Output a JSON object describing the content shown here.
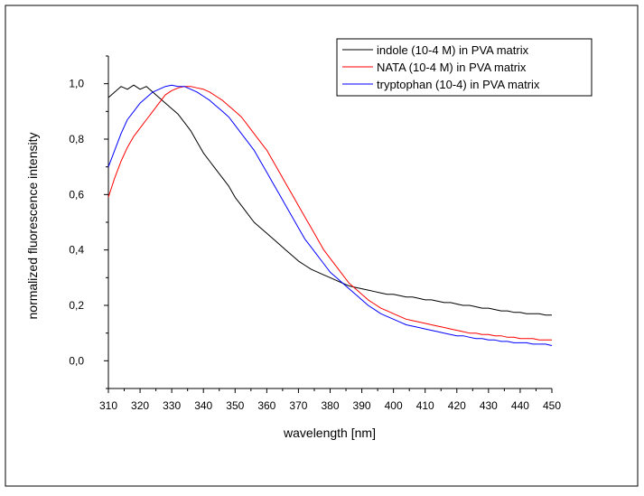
{
  "chart_data": {
    "type": "line",
    "title": "",
    "xlabel": "wavelength [nm]",
    "ylabel": "normalized fluorescence intensity",
    "xlim": [
      310,
      450
    ],
    "ylim": [
      -0.1,
      1.1
    ],
    "xticks": [
      310,
      320,
      330,
      340,
      350,
      360,
      370,
      380,
      390,
      400,
      410,
      420,
      430,
      440,
      450
    ],
    "yticks": [
      0.0,
      0.2,
      0.4,
      0.6,
      0.8,
      1.0
    ],
    "ytick_labels": [
      "0,0",
      "0,2",
      "0,4",
      "0,6",
      "0,8",
      "1,0"
    ],
    "grid": false,
    "legend_position": "top-right",
    "series": [
      {
        "name": "indole (10-4 M) in PVA matrix",
        "color": "#000000",
        "x": [
          310,
          312,
          314,
          316,
          318,
          320,
          322,
          324,
          326,
          328,
          330,
          332,
          334,
          336,
          338,
          340,
          342,
          344,
          346,
          348,
          350,
          352,
          354,
          356,
          358,
          360,
          362,
          364,
          366,
          368,
          370,
          372,
          374,
          376,
          378,
          380,
          382,
          384,
          386,
          388,
          390,
          392,
          394,
          396,
          398,
          400,
          402,
          404,
          406,
          408,
          410,
          412,
          414,
          416,
          418,
          420,
          422,
          424,
          426,
          428,
          430,
          432,
          434,
          436,
          438,
          440,
          442,
          444,
          446,
          448,
          450
        ],
        "y": [
          0.95,
          0.97,
          0.99,
          0.98,
          0.995,
          0.98,
          0.99,
          0.97,
          0.95,
          0.93,
          0.91,
          0.89,
          0.86,
          0.83,
          0.79,
          0.75,
          0.72,
          0.69,
          0.66,
          0.63,
          0.59,
          0.56,
          0.53,
          0.5,
          0.48,
          0.46,
          0.44,
          0.42,
          0.4,
          0.38,
          0.36,
          0.345,
          0.33,
          0.32,
          0.31,
          0.3,
          0.29,
          0.28,
          0.27,
          0.265,
          0.26,
          0.255,
          0.25,
          0.245,
          0.24,
          0.24,
          0.235,
          0.23,
          0.23,
          0.225,
          0.22,
          0.22,
          0.215,
          0.21,
          0.21,
          0.205,
          0.2,
          0.2,
          0.195,
          0.19,
          0.19,
          0.185,
          0.18,
          0.18,
          0.175,
          0.175,
          0.17,
          0.17,
          0.17,
          0.165,
          0.165
        ]
      },
      {
        "name": "NATA (10-4 M) in PVA matrix",
        "color": "#ff0000",
        "x": [
          310,
          312,
          314,
          316,
          318,
          320,
          322,
          324,
          326,
          328,
          330,
          332,
          334,
          336,
          338,
          340,
          342,
          344,
          346,
          348,
          350,
          352,
          354,
          356,
          358,
          360,
          362,
          364,
          366,
          368,
          370,
          372,
          374,
          376,
          378,
          380,
          382,
          384,
          386,
          388,
          390,
          392,
          394,
          396,
          398,
          400,
          402,
          404,
          406,
          408,
          410,
          412,
          414,
          416,
          418,
          420,
          422,
          424,
          426,
          428,
          430,
          432,
          434,
          436,
          438,
          440,
          442,
          444,
          446,
          448,
          450
        ],
        "y": [
          0.59,
          0.66,
          0.72,
          0.77,
          0.81,
          0.84,
          0.87,
          0.9,
          0.93,
          0.96,
          0.975,
          0.985,
          0.99,
          0.99,
          0.985,
          0.98,
          0.97,
          0.955,
          0.94,
          0.92,
          0.9,
          0.88,
          0.85,
          0.82,
          0.79,
          0.76,
          0.72,
          0.68,
          0.64,
          0.6,
          0.56,
          0.52,
          0.48,
          0.44,
          0.4,
          0.37,
          0.34,
          0.31,
          0.28,
          0.26,
          0.24,
          0.22,
          0.205,
          0.19,
          0.18,
          0.17,
          0.16,
          0.15,
          0.145,
          0.14,
          0.135,
          0.13,
          0.125,
          0.12,
          0.115,
          0.11,
          0.105,
          0.1,
          0.1,
          0.095,
          0.095,
          0.09,
          0.09,
          0.085,
          0.085,
          0.08,
          0.08,
          0.08,
          0.075,
          0.075,
          0.075
        ]
      },
      {
        "name": "tryptophan (10-4) in PVA matrix",
        "color": "#0000ff",
        "x": [
          310,
          312,
          314,
          316,
          318,
          320,
          322,
          324,
          326,
          328,
          330,
          332,
          334,
          336,
          338,
          340,
          342,
          344,
          346,
          348,
          350,
          352,
          354,
          356,
          358,
          360,
          362,
          364,
          366,
          368,
          370,
          372,
          374,
          376,
          378,
          380,
          382,
          384,
          386,
          388,
          390,
          392,
          394,
          396,
          398,
          400,
          402,
          404,
          406,
          408,
          410,
          412,
          414,
          416,
          418,
          420,
          422,
          424,
          426,
          428,
          430,
          432,
          434,
          436,
          438,
          440,
          442,
          444,
          446,
          448,
          450
        ],
        "y": [
          0.7,
          0.76,
          0.82,
          0.87,
          0.9,
          0.93,
          0.95,
          0.97,
          0.98,
          0.99,
          0.995,
          0.99,
          0.99,
          0.98,
          0.97,
          0.955,
          0.94,
          0.92,
          0.9,
          0.88,
          0.85,
          0.82,
          0.79,
          0.76,
          0.72,
          0.68,
          0.64,
          0.6,
          0.56,
          0.52,
          0.48,
          0.44,
          0.41,
          0.38,
          0.35,
          0.32,
          0.3,
          0.28,
          0.26,
          0.24,
          0.22,
          0.2,
          0.185,
          0.17,
          0.16,
          0.15,
          0.14,
          0.13,
          0.125,
          0.12,
          0.115,
          0.11,
          0.105,
          0.1,
          0.095,
          0.09,
          0.09,
          0.085,
          0.08,
          0.08,
          0.075,
          0.075,
          0.07,
          0.07,
          0.065,
          0.065,
          0.065,
          0.06,
          0.06,
          0.06,
          0.055
        ]
      }
    ]
  }
}
